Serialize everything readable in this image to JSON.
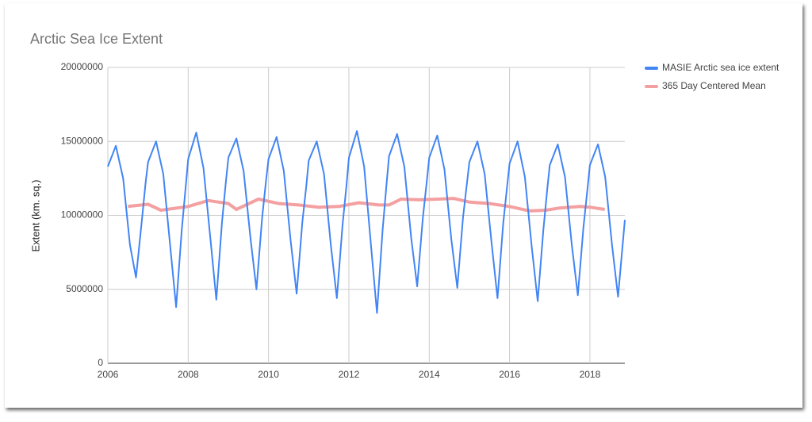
{
  "chart_data": {
    "type": "line",
    "title": "Arctic Sea Ice Extent",
    "y_label": "Extent (km. sq.)",
    "xlim": [
      2006,
      2018.87
    ],
    "xticks": [
      2006,
      2008,
      2010,
      2012,
      2014,
      2016,
      2018
    ],
    "ylim": [
      0,
      20000000
    ],
    "yticks": [
      0,
      5000000,
      10000000,
      15000000,
      20000000
    ],
    "grid": true,
    "legend": "right",
    "series": [
      {
        "name": "MASIE Arctic sea ice extent",
        "color": "#4285f4",
        "x": [
          2006.0,
          2006.2,
          2006.38,
          2006.55,
          2006.7,
          2006.84,
          2006.94,
          2007.0,
          2007.2,
          2007.38,
          2007.55,
          2007.7,
          2007.84,
          2007.94,
          2008.0,
          2008.2,
          2008.38,
          2008.55,
          2008.7,
          2008.84,
          2008.94,
          2009.0,
          2009.2,
          2009.38,
          2009.55,
          2009.7,
          2009.84,
          2009.94,
          2010.0,
          2010.2,
          2010.38,
          2010.55,
          2010.7,
          2010.84,
          2010.94,
          2011.0,
          2011.2,
          2011.38,
          2011.55,
          2011.7,
          2011.84,
          2011.94,
          2012.0,
          2012.2,
          2012.38,
          2012.55,
          2012.7,
          2012.84,
          2012.94,
          2013.0,
          2013.2,
          2013.38,
          2013.55,
          2013.7,
          2013.84,
          2013.94,
          2014.0,
          2014.2,
          2014.38,
          2014.55,
          2014.7,
          2014.84,
          2014.94,
          2015.0,
          2015.2,
          2015.38,
          2015.55,
          2015.7,
          2015.84,
          2015.94,
          2016.0,
          2016.2,
          2016.38,
          2016.55,
          2016.7,
          2016.84,
          2016.94,
          2017.0,
          2017.2,
          2017.38,
          2017.55,
          2017.7,
          2017.84,
          2017.94,
          2018.0,
          2018.2,
          2018.38,
          2018.55,
          2018.7,
          2018.87
        ],
        "values": [
          13300000,
          14700000,
          12500000,
          8000000,
          5800000,
          9500000,
          12200000,
          13600000,
          15000000,
          12800000,
          8000000,
          3800000,
          9000000,
          12000000,
          13800000,
          15600000,
          13200000,
          8500000,
          4300000,
          9500000,
          12300000,
          13900000,
          15200000,
          13000000,
          8500000,
          5000000,
          9800000,
          12400000,
          13800000,
          15300000,
          13000000,
          8300000,
          4700000,
          9500000,
          12000000,
          13700000,
          15000000,
          12800000,
          8000000,
          4400000,
          9300000,
          12000000,
          13900000,
          15700000,
          13300000,
          8000000,
          3400000,
          9000000,
          12200000,
          14000000,
          15500000,
          13300000,
          8500000,
          5200000,
          9800000,
          12300000,
          13900000,
          15400000,
          13100000,
          8400000,
          5100000,
          9800000,
          12200000,
          13600000,
          15000000,
          12800000,
          8200000,
          4400000,
          9400000,
          12000000,
          13500000,
          15000000,
          12600000,
          7900000,
          4200000,
          9000000,
          11800000,
          13400000,
          14800000,
          12600000,
          8000000,
          4600000,
          9200000,
          11800000,
          13400000,
          14800000,
          12600000,
          8000000,
          4500000,
          9700000
        ]
      },
      {
        "name": "365 Day Centered Mean",
        "color": "#f4a0a0",
        "x": [
          2006.5,
          2007.0,
          2007.32,
          2008.0,
          2008.5,
          2009.0,
          2009.2,
          2009.75,
          2010.25,
          2010.75,
          2011.25,
          2011.75,
          2012.25,
          2012.75,
          2013.0,
          2013.3,
          2013.75,
          2014.25,
          2014.6,
          2015.0,
          2015.5,
          2016.0,
          2016.5,
          2016.9,
          2017.25,
          2017.75,
          2018.0,
          2018.37
        ],
        "values": [
          10600000,
          10750000,
          10350000,
          10600000,
          11000000,
          10800000,
          10400000,
          11100000,
          10800000,
          10700000,
          10550000,
          10600000,
          10850000,
          10700000,
          10700000,
          11100000,
          11050000,
          11100000,
          11150000,
          10900000,
          10800000,
          10600000,
          10300000,
          10350000,
          10500000,
          10600000,
          10550000,
          10400000
        ]
      }
    ]
  }
}
